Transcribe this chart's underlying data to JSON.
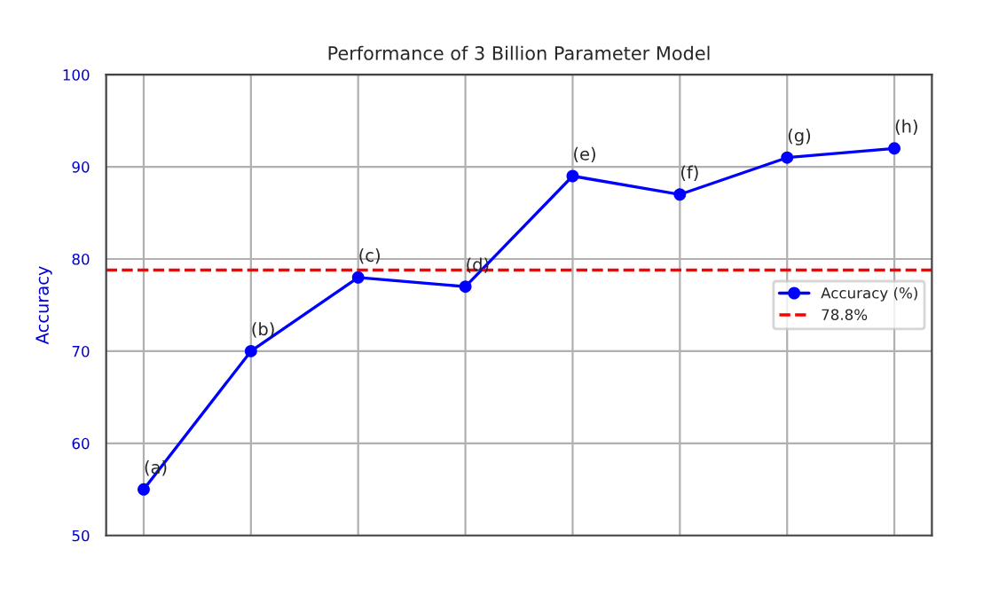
{
  "chart_data": {
    "type": "line",
    "title": "Performance of 3 Billion Parameter Model",
    "ylabel": "Accuracy",
    "categories": [
      null,
      null,
      null,
      null,
      null,
      null,
      null,
      null
    ],
    "series": [
      {
        "name": "Accuracy (%)",
        "color": "#0000ff",
        "values": [
          55,
          70,
          78,
          77,
          89,
          87,
          91,
          92
        ]
      }
    ],
    "ylim": [
      50,
      100
    ],
    "yticks": [
      50,
      60,
      70,
      80,
      90,
      100
    ],
    "ref_lines": [
      {
        "axis": "y",
        "value": 78.8,
        "label": "78.8%",
        "color": "#ff0000",
        "line_style": "dashed"
      }
    ],
    "annotations": [
      {
        "text": "(a)",
        "y": 55
      },
      {
        "text": "(b)",
        "y": 70
      },
      {
        "text": "(c)",
        "y": 78
      },
      {
        "text": "(d)",
        "y": 77
      },
      {
        "text": "(e)",
        "y": 89
      },
      {
        "text": "(f)",
        "y": 87
      },
      {
        "text": "(g)",
        "y": 91
      },
      {
        "text": "(h)",
        "y": 92
      }
    ],
    "grid": true,
    "legend": "right",
    "marker": "circle",
    "line_style": "solid"
  }
}
